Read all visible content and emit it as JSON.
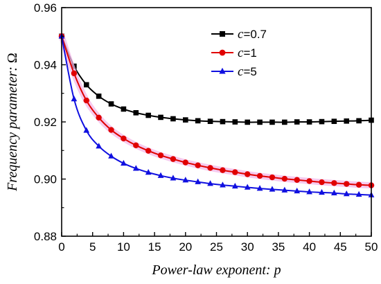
{
  "chart_data": {
    "type": "line",
    "xlabel_text": "Power-law exponent: ",
    "xlabel_var": "p",
    "ylabel_text": "Frequency parameter: ",
    "ylabel_var": "Ω",
    "xlim": [
      0,
      50
    ],
    "ylim": [
      0.88,
      0.96
    ],
    "xticks": [
      0,
      5,
      10,
      15,
      20,
      25,
      30,
      35,
      40,
      45,
      50
    ],
    "yticks": [
      0.88,
      0.9,
      0.92,
      0.94,
      0.96
    ],
    "ytick_labels": [
      "0.88",
      "0.90",
      "0.92",
      "0.94",
      "0.96"
    ],
    "legend_position": "top-right",
    "x": [
      0,
      2,
      4,
      6,
      8,
      10,
      12,
      14,
      16,
      18,
      20,
      22,
      24,
      26,
      28,
      30,
      32,
      34,
      36,
      38,
      40,
      42,
      44,
      46,
      48,
      50
    ],
    "series": [
      {
        "legend_var": "c",
        "legend_value": "=0.7",
        "color": "#000000",
        "marker": "square",
        "values": [
          0.95,
          0.9395,
          0.933,
          0.929,
          0.9263,
          0.9245,
          0.9232,
          0.9223,
          0.9216,
          0.9211,
          0.9207,
          0.9204,
          0.9202,
          0.9201,
          0.92,
          0.9199,
          0.9199,
          0.9199,
          0.9199,
          0.92,
          0.92,
          0.9201,
          0.9202,
          0.9203,
          0.9204,
          0.9206
        ]
      },
      {
        "legend_var": "c",
        "legend_value": "=1",
        "color": "#e00000",
        "marker": "circle",
        "values": [
          0.95,
          0.937,
          0.9275,
          0.9215,
          0.9172,
          0.9142,
          0.9118,
          0.9099,
          0.9083,
          0.907,
          0.9058,
          0.9048,
          0.9039,
          0.9031,
          0.9024,
          0.9017,
          0.9011,
          0.9006,
          0.9001,
          0.8997,
          0.8993,
          0.8989,
          0.8986,
          0.8983,
          0.898,
          0.8978
        ]
      },
      {
        "legend_var": "c",
        "legend_value": "=5",
        "color": "#1010e0",
        "marker": "triangle",
        "values": [
          0.95,
          0.928,
          0.917,
          0.9115,
          0.908,
          0.9055,
          0.9037,
          0.9023,
          0.9012,
          0.9003,
          0.8996,
          0.899,
          0.8984,
          0.8979,
          0.8975,
          0.8971,
          0.8967,
          0.8964,
          0.8961,
          0.8958,
          0.8955,
          0.8953,
          0.8951,
          0.8948,
          0.8946,
          0.8944
        ]
      }
    ]
  }
}
